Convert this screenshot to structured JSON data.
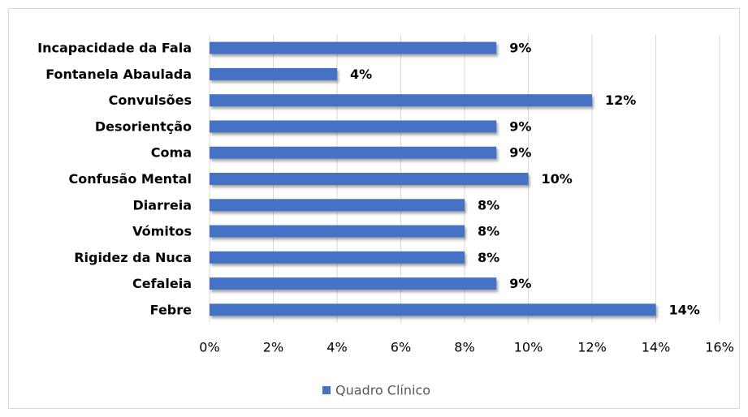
{
  "chart_data": {
    "type": "hbar",
    "categories": [
      "Incapacidade da Fala",
      "Fontanela Abaulada",
      "Convulsões",
      "Desorientção",
      "Coma",
      "Confusão Mental",
      "Diarreia",
      "Vómitos",
      "Rigidez da Nuca",
      "Cefaleia",
      "Febre"
    ],
    "series": [
      {
        "name": "Quadro Clínico",
        "color": "#4472c4",
        "values": [
          9,
          4,
          12,
          9,
          9,
          10,
          8,
          8,
          8,
          9,
          14
        ],
        "value_labels": [
          "9%",
          "4%",
          "12%",
          "9%",
          "9%",
          "10%",
          "8%",
          "8%",
          "8%",
          "9%",
          "14%"
        ]
      }
    ],
    "xlim": [
      0,
      16
    ],
    "xticks": [
      {
        "value": 0,
        "label": "0%"
      },
      {
        "value": 2,
        "label": "2%"
      },
      {
        "value": 4,
        "label": "4%"
      },
      {
        "value": 6,
        "label": "6%"
      },
      {
        "value": 8,
        "label": "8%"
      },
      {
        "value": 10,
        "label": "10%"
      },
      {
        "value": 12,
        "label": "12%"
      },
      {
        "value": 14,
        "label": "14%"
      },
      {
        "value": 16,
        "label": "16%"
      }
    ],
    "grid": true,
    "legend": "bottom"
  }
}
